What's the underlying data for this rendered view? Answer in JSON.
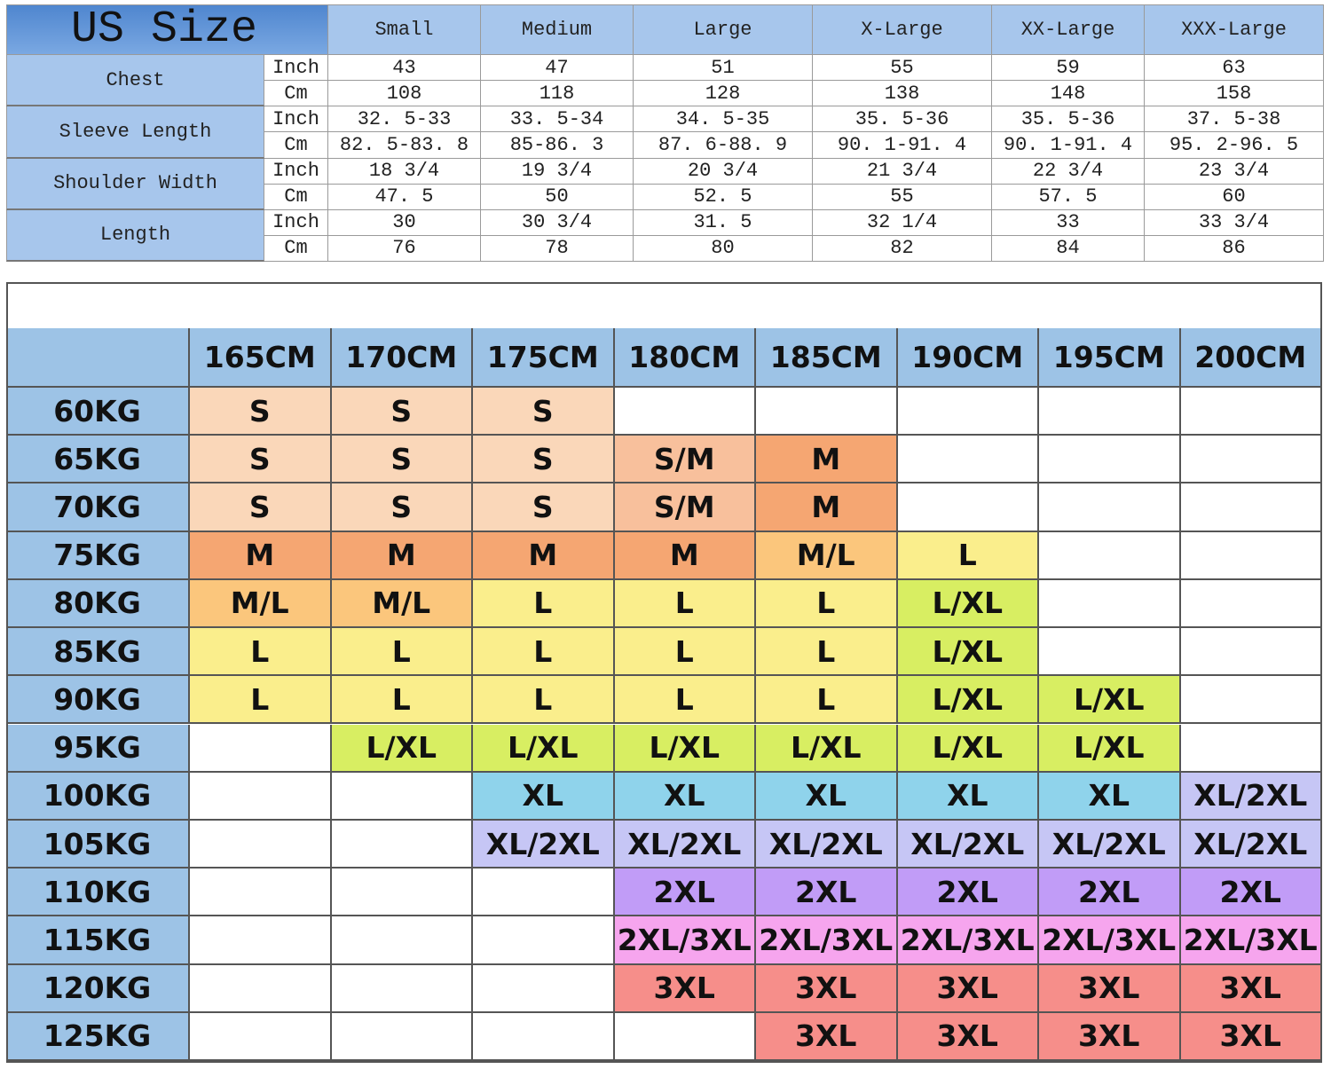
{
  "us_size": {
    "title": "US Size",
    "sizes": [
      "Small",
      "Medium",
      "Large",
      "X-Large",
      "XX-Large",
      "XXX-Large"
    ],
    "groups": [
      {
        "label": "Chest",
        "rows": [
          {
            "unit": "Inch",
            "values": [
              43,
              47,
              51,
              55,
              59,
              63
            ]
          },
          {
            "unit": "Cm",
            "values": [
              108,
              118,
              128,
              138,
              148,
              158
            ]
          }
        ]
      },
      {
        "label": "Sleeve Length",
        "rows": [
          {
            "unit": "Inch",
            "values": [
              "32. 5-33",
              "33. 5-34",
              "34. 5-35",
              "35. 5-36",
              "35. 5-36",
              "37. 5-38"
            ]
          },
          {
            "unit": "Cm",
            "values": [
              "82. 5-83. 8",
              "85-86. 3",
              "87. 6-88. 9",
              "90. 1-91. 4",
              "90. 1-91. 4",
              "95. 2-96. 5"
            ]
          }
        ]
      },
      {
        "label": "Shoulder Width",
        "rows": [
          {
            "unit": "Inch",
            "values": [
              "18 3/4",
              "19 3/4",
              "20 3/4",
              "21 3/4",
              "22 3/4",
              "23 3/4"
            ]
          },
          {
            "unit": "Cm",
            "values": [
              "47. 5",
              50,
              "52. 5",
              55,
              "57. 5",
              60
            ]
          }
        ]
      },
      {
        "label": "Length",
        "rows": [
          {
            "unit": "Inch",
            "values": [
              30,
              "30 3/4",
              "31. 5",
              "32 1/4",
              33,
              "33 3/4"
            ]
          },
          {
            "unit": "Cm",
            "values": [
              76,
              78,
              80,
              82,
              84,
              86
            ]
          }
        ]
      }
    ]
  },
  "size_chart": {
    "heights": [
      "165CM",
      "170CM",
      "175CM",
      "180CM",
      "185CM",
      "190CM",
      "195CM",
      "200CM"
    ],
    "palette": {
      "S": "#fad7b9",
      "S/M": "#f8c09c",
      "M": "#f5a672",
      "M/L": "#fbc67c",
      "L": "#faee8c",
      "L/XL": "#d8ee62",
      "XL": "#8fd3eb",
      "XL/2XL": "#c6c6f5",
      "2XL": "#c19cf7",
      "2XL/3XL": "#f6a5ee",
      "3XL": "#f68e8a"
    },
    "rows": [
      {
        "weight": "60KG",
        "cells": [
          "S",
          "S",
          "S",
          null,
          null,
          null,
          null,
          null
        ]
      },
      {
        "weight": "65KG",
        "cells": [
          "S",
          "S",
          "S",
          "S/M",
          "M",
          null,
          null,
          null
        ]
      },
      {
        "weight": "70KG",
        "cells": [
          "S",
          "S",
          "S",
          "S/M",
          "M",
          null,
          null,
          null
        ]
      },
      {
        "weight": "75KG",
        "cells": [
          "M",
          "M",
          "M",
          "M",
          "M/L",
          "L",
          null,
          null
        ]
      },
      {
        "weight": "80KG",
        "cells": [
          "M/L",
          "M/L",
          "L",
          "L",
          "L",
          "L/XL",
          null,
          null
        ]
      },
      {
        "weight": "85KG",
        "cells": [
          "L",
          "L",
          "L",
          "L",
          "L",
          "L/XL",
          null,
          null
        ]
      },
      {
        "weight": "90KG",
        "cells": [
          "L",
          "L",
          "L",
          "L",
          "L",
          "L/XL",
          "L/XL",
          null
        ]
      },
      {
        "weight": "95KG",
        "cells": [
          null,
          "L/XL",
          "L/XL",
          "L/XL",
          "L/XL",
          "L/XL",
          "L/XL",
          null
        ]
      },
      {
        "weight": "100KG",
        "cells": [
          null,
          null,
          "XL",
          "XL",
          "XL",
          "XL",
          "XL",
          "XL/2XL"
        ]
      },
      {
        "weight": "105KG",
        "cells": [
          null,
          null,
          "XL/2XL",
          "XL/2XL",
          "XL/2XL",
          "XL/2XL",
          "XL/2XL",
          "XL/2XL"
        ]
      },
      {
        "weight": "110KG",
        "cells": [
          null,
          null,
          null,
          "2XL",
          "2XL",
          "2XL",
          "2XL",
          "2XL"
        ]
      },
      {
        "weight": "115KG",
        "cells": [
          null,
          null,
          null,
          "2XL/3XL",
          "2XL/3XL",
          "2XL/3XL",
          "2XL/3XL",
          "2XL/3XL"
        ]
      },
      {
        "weight": "120KG",
        "cells": [
          null,
          null,
          null,
          "3XL",
          "3XL",
          "3XL",
          "3XL",
          "3XL"
        ]
      },
      {
        "weight": "125KG",
        "cells": [
          null,
          null,
          null,
          null,
          "3XL",
          "3XL",
          "3XL",
          "3XL"
        ]
      }
    ]
  }
}
